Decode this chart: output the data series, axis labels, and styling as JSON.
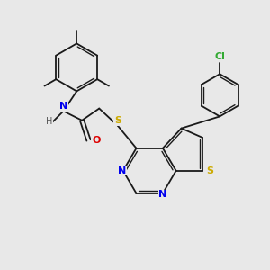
{
  "bg": "#e8e8e8",
  "bond_color": "#1a1a1a",
  "colors": {
    "N": "#0000ee",
    "O": "#dd0000",
    "S": "#ccaa00",
    "Cl": "#33aa33",
    "H": "#555555",
    "C": "#1a1a1a"
  },
  "lw": 1.3,
  "lw_inner": 1.0
}
